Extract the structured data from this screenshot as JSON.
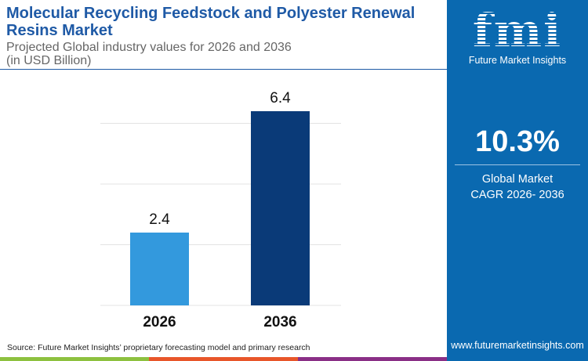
{
  "header": {
    "title": "Molecular Recycling Feedstock and Polyester Renewal Resins Market",
    "subtitle_line1": "Projected Global industry values for 2026 and 2036",
    "subtitle_line2": "(in USD Billion)"
  },
  "panel": {
    "logo_text": "fmi",
    "brand": "Future Market Insights",
    "cagr_value": "10.3%",
    "cagr_label_line1": "Global Market",
    "cagr_label_line2": "CAGR 2026- 2036",
    "website": "www.futuremarketinsights.com",
    "background": "#0a69b0"
  },
  "footer": {
    "source": "Source: Future Market Insights’ proprietary forecasting model and primary research",
    "stripe_colors": [
      "#8dc13f",
      "#e8562a",
      "#8a2f86"
    ]
  },
  "chart_data": {
    "type": "bar",
    "categories": [
      "2026",
      "2036"
    ],
    "values": [
      2.4,
      6.4
    ],
    "value_labels": [
      "2.4",
      "6.4"
    ],
    "colors": [
      "#3399dd",
      "#0a3a78"
    ],
    "ylim": [
      0,
      6.4
    ],
    "gridlines": [
      2,
      4,
      6
    ],
    "grid": true,
    "xlabel": "",
    "ylabel": ""
  }
}
